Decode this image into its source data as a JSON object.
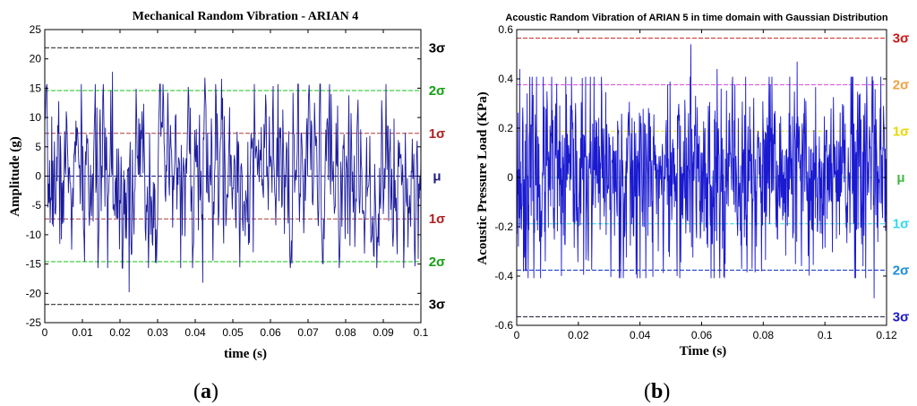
{
  "chart_data": [
    {
      "type": "line",
      "panel_label": "(a)",
      "title": "Mechanical Random Vibration - ARIAN 4",
      "xlabel": "time (s)",
      "ylabel": "Amplitude (g)",
      "xlim": [
        0,
        0.1
      ],
      "ylim": [
        -25,
        25
      ],
      "x_ticks": [
        0,
        0.01,
        0.02,
        0.03,
        0.04,
        0.05,
        0.06,
        0.07,
        0.08,
        0.09,
        0.1
      ],
      "x_tick_labels": [
        "0",
        "0.01",
        "0.02",
        "0.03",
        "0.04",
        "0.05",
        "0.06",
        "0.07",
        "0.08",
        "0.09",
        "0.1"
      ],
      "y_ticks": [
        -25,
        -20,
        -15,
        -10,
        -5,
        0,
        5,
        10,
        15,
        20,
        25
      ],
      "y_tick_labels": [
        "-25",
        "-20",
        "-15",
        "-10",
        "-5",
        "0",
        "5",
        "10",
        "15",
        "20",
        "25"
      ],
      "grid": false,
      "signal_color": "#1c1c9c",
      "signal_seed": 7,
      "signal_samples": 700,
      "signal_std": 7.3,
      "signal_peaks": [
        {
          "x": 0.018,
          "y": 17.8
        },
        {
          "x": 0.0425,
          "y": 16.8
        },
        {
          "x": 0.047,
          "y": 16.6
        },
        {
          "x": 0.0175,
          "y": 14.6
        },
        {
          "x": 0.0225,
          "y": -19.8
        },
        {
          "x": 0.042,
          "y": -18.2
        },
        {
          "x": 0.0105,
          "y": -14.6
        },
        {
          "x": 0.0555,
          "y": -13.0
        }
      ],
      "reference_lines": [
        {
          "y": 21.9,
          "label": "3σ",
          "color": "#333333",
          "label_color": "#000000"
        },
        {
          "y": 14.6,
          "label": "2σ",
          "color": "#2ecc2e",
          "label_color": "#14a014"
        },
        {
          "y": 7.3,
          "label": "1σ",
          "color": "#b03a3a",
          "label_color": "#b02020"
        },
        {
          "y": 0,
          "label": "μ",
          "color": "#1a1a80",
          "label_color": "#1a1a80"
        },
        {
          "y": -7.3,
          "label": "1σ",
          "color": "#b03a3a",
          "label_color": "#b02020"
        },
        {
          "y": -14.6,
          "label": "2σ",
          "color": "#2ecc2e",
          "label_color": "#14a014"
        },
        {
          "y": -21.9,
          "label": "3σ",
          "color": "#333333",
          "label_color": "#000000"
        }
      ]
    },
    {
      "type": "line",
      "panel_label": "(b)",
      "title": "Acoustic Random Vibration of ARIAN 5 in time domain with Gaussian Distribution",
      "xlabel": "Time (s)",
      "ylabel": "Acoustic Pressure Load (KPa)",
      "xlim": [
        0,
        0.12
      ],
      "ylim": [
        -0.6,
        0.6
      ],
      "x_ticks": [
        0,
        0.02,
        0.04,
        0.06,
        0.08,
        0.1,
        0.12
      ],
      "x_tick_labels": [
        "0",
        "0.02",
        "0.04",
        "0.06",
        "0.08",
        "0.1",
        "0.12"
      ],
      "y_ticks": [
        -0.6,
        -0.4,
        -0.2,
        0,
        0.2,
        0.4,
        0.6
      ],
      "y_tick_labels": [
        "-0.6",
        "-0.4",
        "-0.2",
        "0",
        "0.2",
        "0.4",
        "0.6"
      ],
      "grid": false,
      "signal_color": "#1a1ad0",
      "signal_seed": 23,
      "signal_samples": 1100,
      "signal_std": 0.19,
      "signal_peaks": [
        {
          "x": 0.0565,
          "y": 0.54
        },
        {
          "x": 0.091,
          "y": 0.47
        },
        {
          "x": 0.001,
          "y": 0.44
        },
        {
          "x": 0.065,
          "y": 0.44
        },
        {
          "x": 0.116,
          "y": -0.49
        },
        {
          "x": 0.0145,
          "y": -0.4
        },
        {
          "x": 0.003,
          "y": -0.38
        },
        {
          "x": 0.073,
          "y": -0.37
        }
      ],
      "reference_lines": [
        {
          "y": 0.565,
          "label": "3σ",
          "color": "#cc2222",
          "label_color": "#d01818"
        },
        {
          "y": 0.376,
          "label": "2σ",
          "color": "#e060e0",
          "label_color": "#f0a040"
        },
        {
          "y": 0.188,
          "label": "1σ",
          "color": "#e8e040",
          "label_color": "#e8d800"
        },
        {
          "y": 0,
          "label": "μ",
          "color": "#60d060",
          "label_color": "#3cbc3c"
        },
        {
          "y": -0.188,
          "label": "1σ",
          "color": "#40e0e0",
          "label_color": "#30d8f0"
        },
        {
          "y": -0.376,
          "label": "2σ",
          "color": "#2244cc",
          "label_color": "#1c8ce0"
        },
        {
          "y": -0.565,
          "label": "3σ",
          "color": "#101030",
          "label_color": "#1a1ad0"
        }
      ]
    }
  ]
}
